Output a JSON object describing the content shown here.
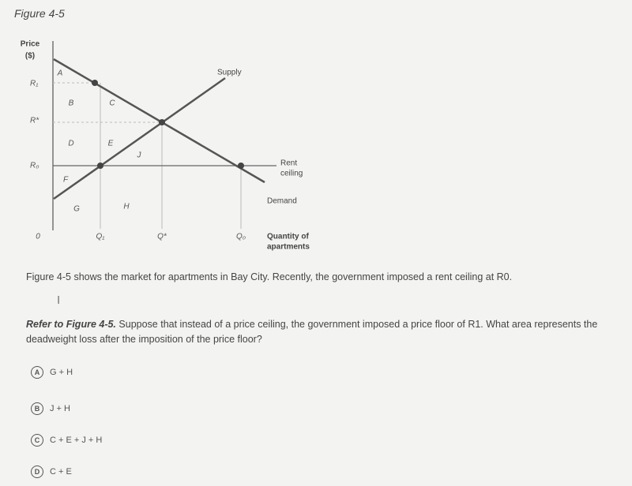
{
  "figure": {
    "title": "Figure 4-5",
    "y_axis_label": [
      "Price",
      "($)"
    ],
    "price_labels": [
      "R₁",
      "R*",
      "R₀"
    ],
    "quantity_labels": [
      "0",
      "Q₁",
      "Q*",
      "Q₀"
    ],
    "x_axis_label": [
      "Quantity of",
      "apartments"
    ],
    "supply_label": "Supply",
    "demand_label": "Demand",
    "rent_ceiling_label": [
      "Rent",
      "ceiling"
    ],
    "areas": [
      "A",
      "B",
      "C",
      "D",
      "E",
      "F",
      "G",
      "H",
      "J"
    ]
  },
  "description": "Figure 4-5 shows the market for apartments in Bay City. Recently, the government imposed a rent ceiling at R0.",
  "question": {
    "reference": "Refer to Figure 4-5.",
    "body": "Suppose that instead of a price ceiling, the government imposed a price floor of R1. What area represents the deadweight loss after the imposition of the price floor?"
  },
  "options": [
    {
      "letter": "A",
      "text": "G + H"
    },
    {
      "letter": "B",
      "text": "J + H"
    },
    {
      "letter": "C",
      "text": "C + E + J + H"
    },
    {
      "letter": "D",
      "text": "C + E"
    }
  ]
}
